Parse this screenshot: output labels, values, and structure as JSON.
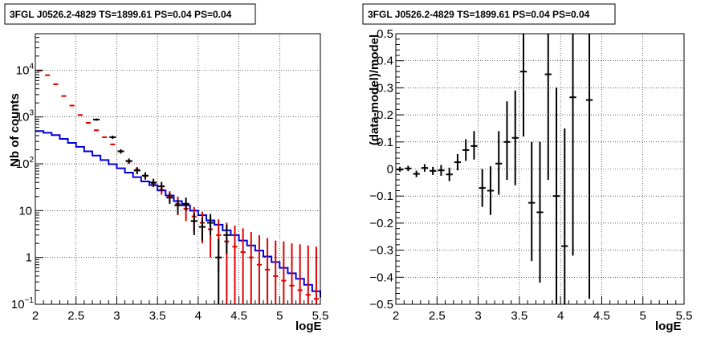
{
  "chart_data": [
    {
      "type": "histogram",
      "title": "3FGL J0526.2-4829 TS=1899.61 PS=0.04 PS=0.04",
      "xlabel": "logE",
      "ylabel": "Nb of counts",
      "xlim": [
        2,
        5.5
      ],
      "ylim": [
        0.1,
        60000
      ],
      "yscale": "log",
      "grid": true,
      "xticks": [
        2,
        2.5,
        3,
        3.5,
        4,
        4.5,
        5,
        5.5
      ],
      "xtick_labels": [
        "2",
        "2.5",
        "3",
        "3.5",
        "4",
        "4.5",
        "5",
        "5.5"
      ],
      "yticks": [
        {
          "value": 0.1,
          "label": "10",
          "exp": "−1"
        },
        {
          "value": 1,
          "label": "1",
          "exp": ""
        },
        {
          "value": 10,
          "label": "10",
          "exp": ""
        },
        {
          "value": 100,
          "label": "10",
          "exp": "2"
        },
        {
          "value": 1000,
          "label": "10",
          "exp": "3"
        },
        {
          "value": 10000,
          "label": "10",
          "exp": "4"
        }
      ],
      "bin_edges": [
        2.0,
        2.1,
        2.2,
        2.3,
        2.4,
        2.5,
        2.6,
        2.7,
        2.8,
        2.9,
        3.0,
        3.1,
        3.2,
        3.3,
        3.4,
        3.5,
        3.6,
        3.7,
        3.8,
        3.9,
        4.0,
        4.1,
        4.2,
        4.3,
        4.4,
        4.5,
        4.6,
        4.7,
        4.8,
        4.9,
        5.0,
        5.1,
        5.2,
        5.3,
        5.4,
        5.5
      ],
      "series": [
        {
          "style": "red model points with error bars",
          "color": "#e00000",
          "values": [
            9800,
            7800,
            5000,
            2800,
            1750,
            1100,
            750,
            520,
            370,
            260,
            185,
            112,
            75,
            55,
            38,
            28,
            20,
            14,
            11,
            7.5,
            5.5,
            4,
            3,
            2.2,
            1.7,
            1.3,
            1.0,
            0.7,
            0.55,
            0.4,
            0.32,
            0.25,
            0.2,
            0.16,
            0.13
          ],
          "err_low": [
            9600,
            7600,
            4800,
            2700,
            1700,
            1070,
            725,
            500,
            355,
            250,
            175,
            105,
            68,
            48,
            32,
            22,
            15,
            8,
            6,
            3.5,
            2.0,
            1.0,
            0.5,
            0.05,
            0.05,
            0.05,
            0.05,
            0.05,
            0.05,
            0.05,
            0.05,
            0.05,
            0.05,
            0.05,
            0.05
          ],
          "err_high": [
            10000,
            8000,
            5200,
            2900,
            1800,
            1130,
            775,
            540,
            385,
            270,
            195,
            119,
            82,
            62,
            44,
            34,
            26,
            20,
            16,
            12,
            9.5,
            7.5,
            6.5,
            5.5,
            4.8,
            4.2,
            3.5,
            3.0,
            2.6,
            2.3,
            2.2,
            2.0,
            1.9,
            1.8,
            1.7
          ]
        },
        {
          "style": "black data points with error bars",
          "color": "#000000",
          "points": [
            {
              "x": 2.75,
              "y": 880,
              "lo": 830,
              "hi": 930
            },
            {
              "x": 2.95,
              "y": 370,
              "lo": 340,
              "hi": 400
            },
            {
              "x": 3.05,
              "y": 185,
              "lo": 165,
              "hi": 205
            },
            {
              "x": 3.15,
              "y": 115,
              "lo": 100,
              "hi": 130
            },
            {
              "x": 3.25,
              "y": 72,
              "lo": 60,
              "hi": 85
            },
            {
              "x": 3.35,
              "y": 56,
              "lo": 46,
              "hi": 66
            },
            {
              "x": 3.45,
              "y": 40,
              "lo": 32,
              "hi": 48
            },
            {
              "x": 3.55,
              "y": 33,
              "lo": 26,
              "hi": 41
            },
            {
              "x": 3.65,
              "y": 19,
              "lo": 14,
              "hi": 24
            },
            {
              "x": 3.75,
              "y": 13,
              "lo": 8.5,
              "hi": 17
            },
            {
              "x": 3.85,
              "y": 14,
              "lo": 10,
              "hi": 19
            },
            {
              "x": 3.95,
              "y": 6,
              "lo": 3,
              "hi": 9
            },
            {
              "x": 4.05,
              "y": 4.5,
              "lo": 2.3,
              "hi": 7
            },
            {
              "x": 4.15,
              "y": 5.5,
              "lo": 3,
              "hi": 8.5
            },
            {
              "x": 4.25,
              "y": 1,
              "lo": 0.1,
              "hi": 2.5
            },
            {
              "x": 4.35,
              "y": 3,
              "lo": 1.2,
              "hi": 5
            }
          ]
        },
        {
          "style": "blue step histogram",
          "color": "#0000dd",
          "values": [
            500,
            460,
            410,
            340,
            280,
            230,
            185,
            150,
            120,
            98,
            80,
            65,
            52,
            42,
            35,
            27,
            21,
            16,
            13,
            10,
            8,
            6.2,
            5,
            3.8,
            3,
            2.3,
            1.8,
            1.4,
            1.05,
            0.8,
            0.6,
            0.46,
            0.35,
            0.26,
            0.19,
            0.14
          ]
        }
      ]
    },
    {
      "type": "scatter",
      "title": "3FGL J0526.2-4829 TS=1899.61 PS=0.04 PS=0.04",
      "xlabel": "logE",
      "ylabel": "(data-model)/model",
      "xlim": [
        2,
        5.5
      ],
      "ylim": [
        -0.5,
        0.5
      ],
      "grid": true,
      "xticks": [
        2,
        2.5,
        3,
        3.5,
        4,
        4.5,
        5,
        5.5
      ],
      "xtick_labels": [
        "2",
        "2.5",
        "3",
        "3.5",
        "4",
        "4.5",
        "5",
        "5.5"
      ],
      "yticks": [
        -0.5,
        -0.4,
        -0.3,
        -0.2,
        -0.1,
        0,
        0.1,
        0.2,
        0.3,
        0.4,
        0.5
      ],
      "ytick_labels": [
        "−0.5",
        "−0.4",
        "−0.3",
        "−0.2",
        "−0.1",
        "0",
        "0.1",
        "0.2",
        "0.3",
        "0.4",
        "0.5"
      ],
      "series": [
        {
          "color": "#000000",
          "points": [
            {
              "x": 2.05,
              "y": -0.002,
              "lo": -0.01,
              "hi": 0.008
            },
            {
              "x": 2.15,
              "y": 0.002,
              "lo": -0.008,
              "hi": 0.012
            },
            {
              "x": 2.25,
              "y": -0.018,
              "lo": -0.03,
              "hi": -0.006
            },
            {
              "x": 2.35,
              "y": 0.004,
              "lo": -0.01,
              "hi": 0.018
            },
            {
              "x": 2.45,
              "y": -0.007,
              "lo": -0.022,
              "hi": 0.008
            },
            {
              "x": 2.55,
              "y": -0.005,
              "lo": -0.025,
              "hi": 0.015
            },
            {
              "x": 2.65,
              "y": -0.02,
              "lo": -0.045,
              "hi": 0.005
            },
            {
              "x": 2.75,
              "y": 0.025,
              "lo": -0.005,
              "hi": 0.055
            },
            {
              "x": 2.85,
              "y": 0.07,
              "lo": 0.03,
              "hi": 0.11
            },
            {
              "x": 2.95,
              "y": 0.085,
              "lo": 0.035,
              "hi": 0.14
            },
            {
              "x": 3.05,
              "y": -0.07,
              "lo": -0.14,
              "hi": 0.0
            },
            {
              "x": 3.15,
              "y": -0.08,
              "lo": -0.17,
              "hi": 0.01
            },
            {
              "x": 3.25,
              "y": 0.02,
              "lo": -0.095,
              "hi": 0.14
            },
            {
              "x": 3.35,
              "y": 0.1,
              "lo": -0.04,
              "hi": 0.25
            },
            {
              "x": 3.45,
              "y": 0.115,
              "lo": -0.06,
              "hi": 0.29
            },
            {
              "x": 3.55,
              "y": 0.36,
              "lo": 0.12,
              "hi": 0.6
            },
            {
              "x": 3.65,
              "y": -0.125,
              "lo": -0.34,
              "hi": 0.1
            },
            {
              "x": 3.75,
              "y": -0.16,
              "lo": -0.42,
              "hi": 0.1
            },
            {
              "x": 3.85,
              "y": 0.35,
              "lo": -0.04,
              "hi": 0.75
            },
            {
              "x": 3.95,
              "y": -0.1,
              "lo": -0.6,
              "hi": 0.3
            },
            {
              "x": 4.05,
              "y": -0.285,
              "lo": -0.7,
              "hi": 0.15
            },
            {
              "x": 4.15,
              "y": 0.265,
              "lo": -0.32,
              "hi": 0.85
            },
            {
              "x": 4.35,
              "y": 0.255,
              "lo": -0.48,
              "hi": 0.9
            }
          ]
        }
      ]
    }
  ]
}
